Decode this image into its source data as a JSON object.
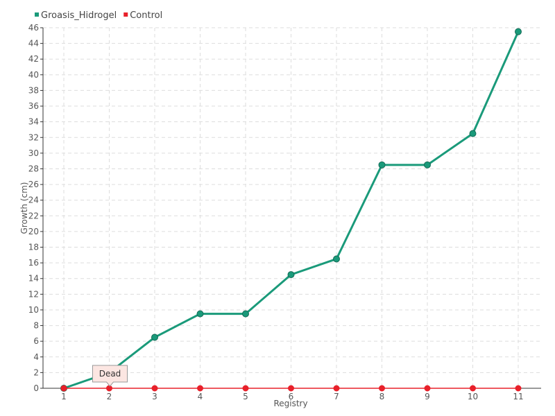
{
  "chart_data": {
    "type": "line",
    "xlabel": "Registry",
    "ylabel": "Growth (cm)",
    "categories": [
      "1",
      "2",
      "3",
      "4",
      "5",
      "6",
      "7",
      "8",
      "9",
      "10",
      "11"
    ],
    "ylim": [
      0,
      46
    ],
    "ytick_step": 2,
    "grid": true,
    "legend": "top-left",
    "series": [
      {
        "name": "Groasis_Hidrogel",
        "color": "#1a9a7a",
        "values": [
          0,
          2,
          6.5,
          9.5,
          9.5,
          14.5,
          16.5,
          28.5,
          28.5,
          32.5,
          45.5
        ]
      },
      {
        "name": "Control",
        "color": "#e8202a",
        "values": [
          0,
          0,
          0,
          0,
          0,
          0,
          0,
          0,
          0,
          0,
          0
        ]
      }
    ],
    "annotation": {
      "text": "Dead",
      "series": "Control",
      "x": "2"
    }
  }
}
